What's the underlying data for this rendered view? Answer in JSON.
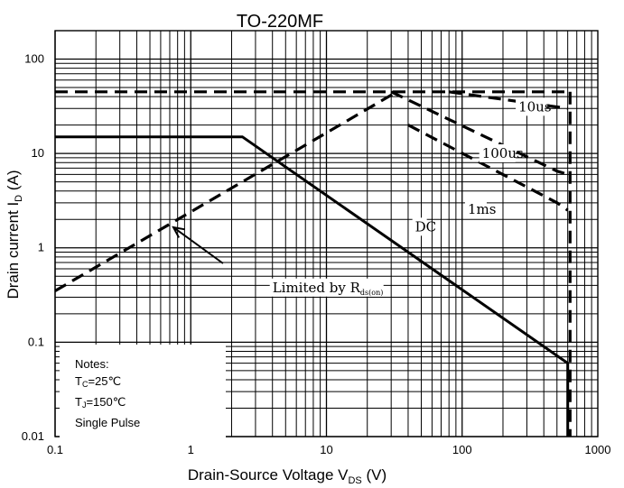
{
  "chart_data": {
    "type": "line",
    "title": "TO-220MF",
    "xlabel": {
      "main": "Drain-Source Voltage V",
      "sub": "DS",
      "unit": " (V)"
    },
    "ylabel": {
      "main": "Drain current I",
      "sub": "D",
      "unit": " (A)"
    },
    "x_scale": "log",
    "y_scale": "log",
    "xlim": [
      0.1,
      1000
    ],
    "ylim": [
      0.01,
      200
    ],
    "x_ticks": [
      {
        "value": 0.1,
        "label": "0.1"
      },
      {
        "value": 1,
        "label": "1"
      },
      {
        "value": 10,
        "label": "10"
      },
      {
        "value": 100,
        "label": "100"
      },
      {
        "value": 1000,
        "label": "1000"
      }
    ],
    "y_ticks": [
      {
        "value": 0.01,
        "label": "0.01"
      },
      {
        "value": 0.1,
        "label": "0.1"
      },
      {
        "value": 1,
        "label": "1"
      },
      {
        "value": 10,
        "label": "10"
      },
      {
        "value": 100,
        "label": "100"
      }
    ],
    "grid": true,
    "series": [
      {
        "name": "DC",
        "style": "solid",
        "points": [
          [
            0.1,
            15
          ],
          [
            2.4,
            15
          ],
          [
            600,
            0.06
          ],
          [
            600,
            0.01
          ]
        ]
      },
      {
        "name": "Limited by Rds(on)",
        "style": "dashed",
        "points": [
          [
            0.1,
            0.35
          ],
          [
            33,
            45
          ]
        ]
      },
      {
        "name": "",
        "style": "dashed",
        "points": [
          [
            0.1,
            45
          ],
          [
            600,
            45
          ]
        ]
      },
      {
        "name": "",
        "style": "dashed",
        "points": [
          [
            625,
            45
          ],
          [
            625,
            0.01
          ]
        ]
      },
      {
        "name": "10us",
        "style": "dashed",
        "points": [
          [
            80,
            45
          ],
          [
            600,
            30
          ]
        ]
      },
      {
        "name": "100us",
        "style": "dashed",
        "points": [
          [
            30,
            45
          ],
          [
            500,
            6.5
          ],
          [
            600,
            6
          ]
        ]
      },
      {
        "name": "1ms",
        "style": "dashed",
        "points": [
          [
            40,
            20
          ],
          [
            500,
            3
          ],
          [
            600,
            2.5
          ]
        ]
      }
    ],
    "annotations": [
      {
        "text": "10us",
        "x": 260,
        "y": 28
      },
      {
        "text": "100us",
        "x": 140,
        "y": 9
      },
      {
        "text": "1ms",
        "x": 110,
        "y": 2.3
      },
      {
        "text": "DC",
        "x": 45,
        "y": 1.5
      },
      {
        "text": "Limited by R",
        "sub": "ds(on)",
        "x": 4,
        "y": 0.34
      }
    ],
    "notes": {
      "title": "Notes:",
      "tc": {
        "prefix": "T",
        "sub": "C",
        "value": "=25℃"
      },
      "tj": {
        "prefix": "T",
        "sub": "J",
        "value": "=150℃"
      },
      "pulse": "Single Pulse"
    }
  }
}
